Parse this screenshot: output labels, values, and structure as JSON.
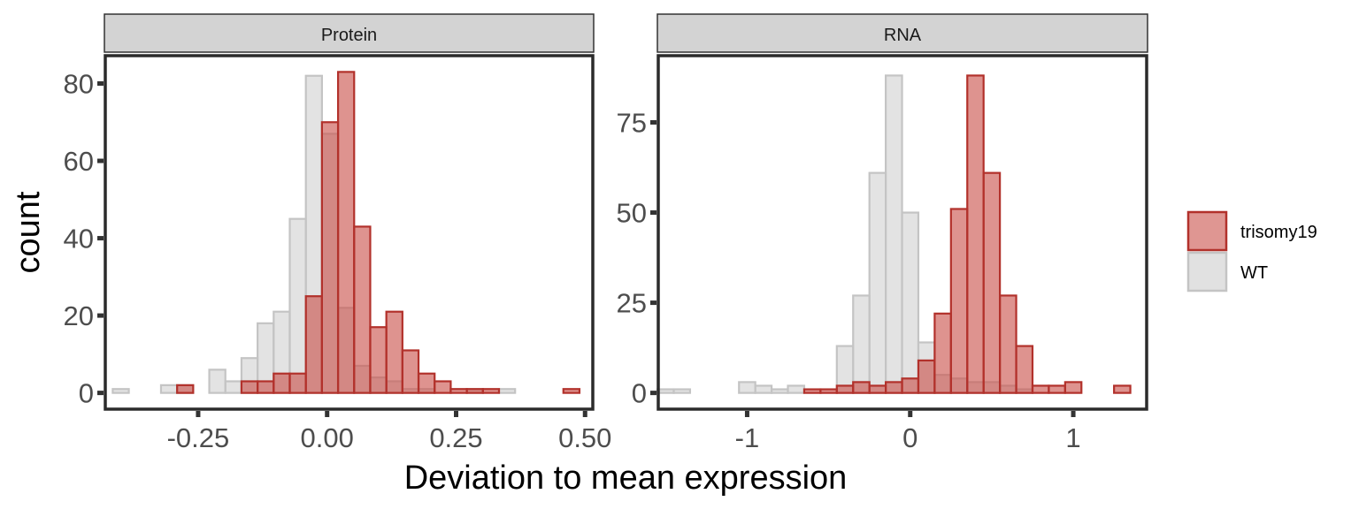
{
  "chart_data": {
    "type": "bar",
    "subtype": "faceted-overlaid-histogram",
    "xlabel": "Deviation to mean expression",
    "ylabel": "count",
    "legend": {
      "placement": "right",
      "entries": [
        {
          "name": "trisomy19",
          "fill": "#c9504a",
          "stroke": "#b2312b"
        },
        {
          "name": "WT",
          "fill": "#d7d7d7",
          "stroke": "#c4c4c4"
        }
      ]
    },
    "panels": [
      {
        "strip": "Protein",
        "xlim": [
          -0.43,
          0.515
        ],
        "ylim": [
          -4.2,
          87.2
        ],
        "xticks": [
          {
            "value": -0.25,
            "label": "-0.25"
          },
          {
            "value": 0.0,
            "label": "0.00"
          },
          {
            "value": 0.25,
            "label": "0.25"
          },
          {
            "value": 0.5,
            "label": "0.50"
          }
        ],
        "yticks": [
          {
            "value": 0,
            "label": "0"
          },
          {
            "value": 20,
            "label": "20"
          },
          {
            "value": 40,
            "label": "40"
          },
          {
            "value": 60,
            "label": "60"
          },
          {
            "value": 80,
            "label": "80"
          }
        ],
        "bins_start": -0.4,
        "bin_width": 0.0312,
        "series": [
          {
            "name": "WT",
            "values": [
              1,
              0,
              0,
              2,
              2,
              0,
              6,
              3,
              9,
              18,
              21,
              45,
              82,
              67,
              22,
              7,
              4,
              3,
              1,
              1,
              0,
              0,
              1,
              0,
              1,
              0,
              0,
              0,
              0
            ]
          },
          {
            "name": "trisomy19",
            "values": [
              0,
              0,
              0,
              0,
              2,
              0,
              0,
              0,
              3,
              3,
              5,
              5,
              25,
              70,
              83,
              43,
              17,
              21,
              11,
              5,
              3,
              1,
              1,
              1,
              0,
              0,
              0,
              0,
              1
            ]
          }
        ]
      },
      {
        "strip": "RNA",
        "xlim": [
          -1.545,
          1.45
        ],
        "ylim": [
          -4.5,
          93.5
        ],
        "xticks": [
          {
            "value": -1,
            "label": "-1"
          },
          {
            "value": 0,
            "label": "0"
          },
          {
            "value": 1,
            "label": "1"
          }
        ],
        "yticks": [
          {
            "value": 0,
            "label": "0"
          },
          {
            "value": 25,
            "label": "25"
          },
          {
            "value": 50,
            "label": "50"
          },
          {
            "value": 75,
            "label": "75"
          }
        ],
        "bins_start": -1.5,
        "bin_width": 0.1,
        "series": [
          {
            "name": "WT",
            "values": [
              1,
              1,
              0,
              0,
              0,
              3,
              2,
              1,
              2,
              0,
              0,
              13,
              27,
              61,
              88,
              50,
              14,
              5,
              4,
              3,
              3,
              2,
              1,
              0,
              0,
              0,
              0,
              0,
              0
            ]
          },
          {
            "name": "trisomy19",
            "values": [
              0,
              0,
              0,
              0,
              0,
              0,
              0,
              0,
              0,
              1,
              1,
              2,
              3,
              2,
              3,
              4,
              9,
              22,
              51,
              88,
              61,
              27,
              13,
              2,
              2,
              3,
              0,
              0,
              2
            ]
          }
        ]
      }
    ]
  }
}
